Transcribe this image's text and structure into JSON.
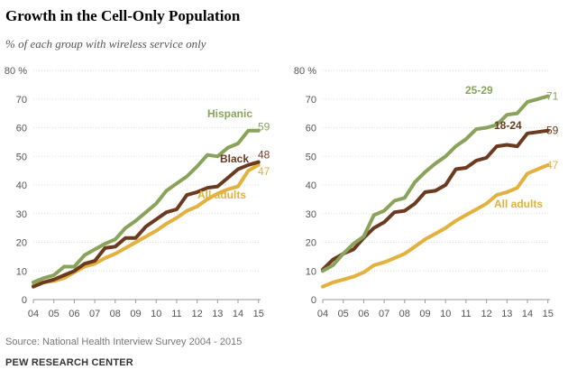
{
  "title": "Growth in the Cell-Only Population",
  "subtitle": "% of each group with wireless service only",
  "source": "Source: National Health Interview Survey 2004 - 2015",
  "credit": "PEW RESEARCH CENTER",
  "colors": {
    "hispanic": "#8aa35b",
    "black": "#6b3a1f",
    "all_adults": "#e3b13e",
    "age25_29": "#8aa35b",
    "age18_24": "#6b3a1f",
    "axis": "#999999",
    "grid": "#dddddd",
    "tick_text": "#555555"
  },
  "chart_data": [
    {
      "type": "line",
      "panel": "left",
      "x_ticks": [
        "04",
        "05",
        "06",
        "07",
        "08",
        "09",
        "10",
        "11",
        "12",
        "13",
        "14",
        "15"
      ],
      "y_ticks": [
        "80 %",
        "70",
        "60",
        "50",
        "40",
        "30",
        "20",
        "10",
        "0"
      ],
      "ylim": [
        0,
        80
      ],
      "xlim": [
        2004,
        2015.1
      ],
      "grid": true,
      "series": [
        {
          "name": "Hispanic",
          "color_key": "hispanic",
          "end_value": "59",
          "x": [
            2004,
            2004.5,
            2005,
            2005.5,
            2006,
            2006.5,
            2007,
            2007.5,
            2008,
            2008.5,
            2009,
            2009.5,
            2010,
            2010.5,
            2011,
            2011.5,
            2012,
            2012.5,
            2013,
            2013.5,
            2014,
            2014.5,
            2015
          ],
          "y": [
            6,
            7.5,
            8.5,
            11.5,
            11.5,
            15.5,
            17.5,
            19.5,
            21,
            25,
            27.5,
            30.5,
            33.5,
            38,
            40.5,
            43,
            46.5,
            50.5,
            50,
            53,
            54.5,
            59,
            59
          ]
        },
        {
          "name": "Black",
          "color_key": "black",
          "end_value": "48",
          "x": [
            2004,
            2004.5,
            2005,
            2005.5,
            2006,
            2006.5,
            2007,
            2007.5,
            2008,
            2008.5,
            2009,
            2009.5,
            2010,
            2010.5,
            2011,
            2011.5,
            2012,
            2012.5,
            2013,
            2013.5,
            2014,
            2014.5,
            2015
          ],
          "y": [
            4.5,
            6,
            7,
            8.5,
            10,
            12.5,
            13.5,
            18,
            18.5,
            21.5,
            21.5,
            25.5,
            28,
            30.5,
            31.5,
            36.5,
            37.5,
            39,
            39.5,
            42.5,
            45.5,
            47,
            48
          ]
        },
        {
          "name": "All adults",
          "color_key": "all_adults",
          "end_value": "47",
          "x": [
            2004,
            2004.5,
            2005,
            2005.5,
            2006,
            2006.5,
            2007,
            2007.5,
            2008,
            2008.5,
            2009,
            2009.5,
            2010,
            2010.5,
            2011,
            2011.5,
            2012,
            2012.5,
            2013,
            2013.5,
            2014,
            2014.5,
            2015
          ],
          "y": [
            5,
            6,
            6.5,
            7.5,
            9.5,
            11.5,
            12.5,
            14.5,
            16,
            18,
            20,
            22,
            24,
            26.5,
            28.5,
            31,
            32.5,
            35,
            37,
            38.5,
            39.5,
            45,
            47
          ]
        }
      ]
    },
    {
      "type": "line",
      "panel": "right",
      "x_ticks": [
        "04",
        "05",
        "06",
        "07",
        "08",
        "09",
        "10",
        "11",
        "12",
        "13",
        "14",
        "15"
      ],
      "y_ticks": [
        "80 %",
        "70",
        "60",
        "50",
        "40",
        "30",
        "20",
        "10",
        "0"
      ],
      "ylim": [
        0,
        80
      ],
      "xlim": [
        2004,
        2015.1
      ],
      "grid": true,
      "series": [
        {
          "name": "25-29",
          "color_key": "age25_29",
          "end_value": "71",
          "x": [
            2004,
            2004.5,
            2005,
            2005.5,
            2006,
            2006.5,
            2007,
            2007.5,
            2008,
            2008.5,
            2009,
            2009.5,
            2010,
            2010.5,
            2011,
            2011.5,
            2012,
            2012.5,
            2013,
            2013.5,
            2014,
            2014.5,
            2015
          ],
          "y": [
            10,
            12,
            16,
            19.5,
            22,
            29.5,
            31,
            34.5,
            35.5,
            41,
            44.5,
            47.5,
            50,
            53.5,
            56,
            59.5,
            60,
            61,
            64.5,
            65,
            69,
            70,
            71
          ]
        },
        {
          "name": "18-24",
          "color_key": "age18_24",
          "end_value": "59",
          "x": [
            2004,
            2004.5,
            2005,
            2005.5,
            2006,
            2006.5,
            2007,
            2007.5,
            2008,
            2008.5,
            2009,
            2009.5,
            2010,
            2010.5,
            2011,
            2011.5,
            2012,
            2012.5,
            2013,
            2013.5,
            2014,
            2014.5,
            2015
          ],
          "y": [
            10.5,
            14,
            16,
            17.5,
            21.5,
            25,
            27,
            30.5,
            31,
            33.5,
            37.5,
            38,
            40,
            45.5,
            46,
            48.5,
            49.5,
            53.5,
            54,
            53.5,
            58,
            58.5,
            59
          ]
        },
        {
          "name": "All adults",
          "color_key": "all_adults",
          "end_value": "47",
          "x": [
            2004,
            2004.5,
            2005,
            2005.5,
            2006,
            2006.5,
            2007,
            2007.5,
            2008,
            2008.5,
            2009,
            2009.5,
            2010,
            2010.5,
            2011,
            2011.5,
            2012,
            2012.5,
            2013,
            2013.5,
            2014,
            2014.5,
            2015
          ],
          "y": [
            4.5,
            6,
            7,
            8,
            9.5,
            12,
            13,
            14.5,
            16,
            18.5,
            21,
            23,
            25,
            27.5,
            29.5,
            31.5,
            33.5,
            36.5,
            37.5,
            39,
            44,
            45.5,
            47
          ]
        }
      ]
    }
  ]
}
